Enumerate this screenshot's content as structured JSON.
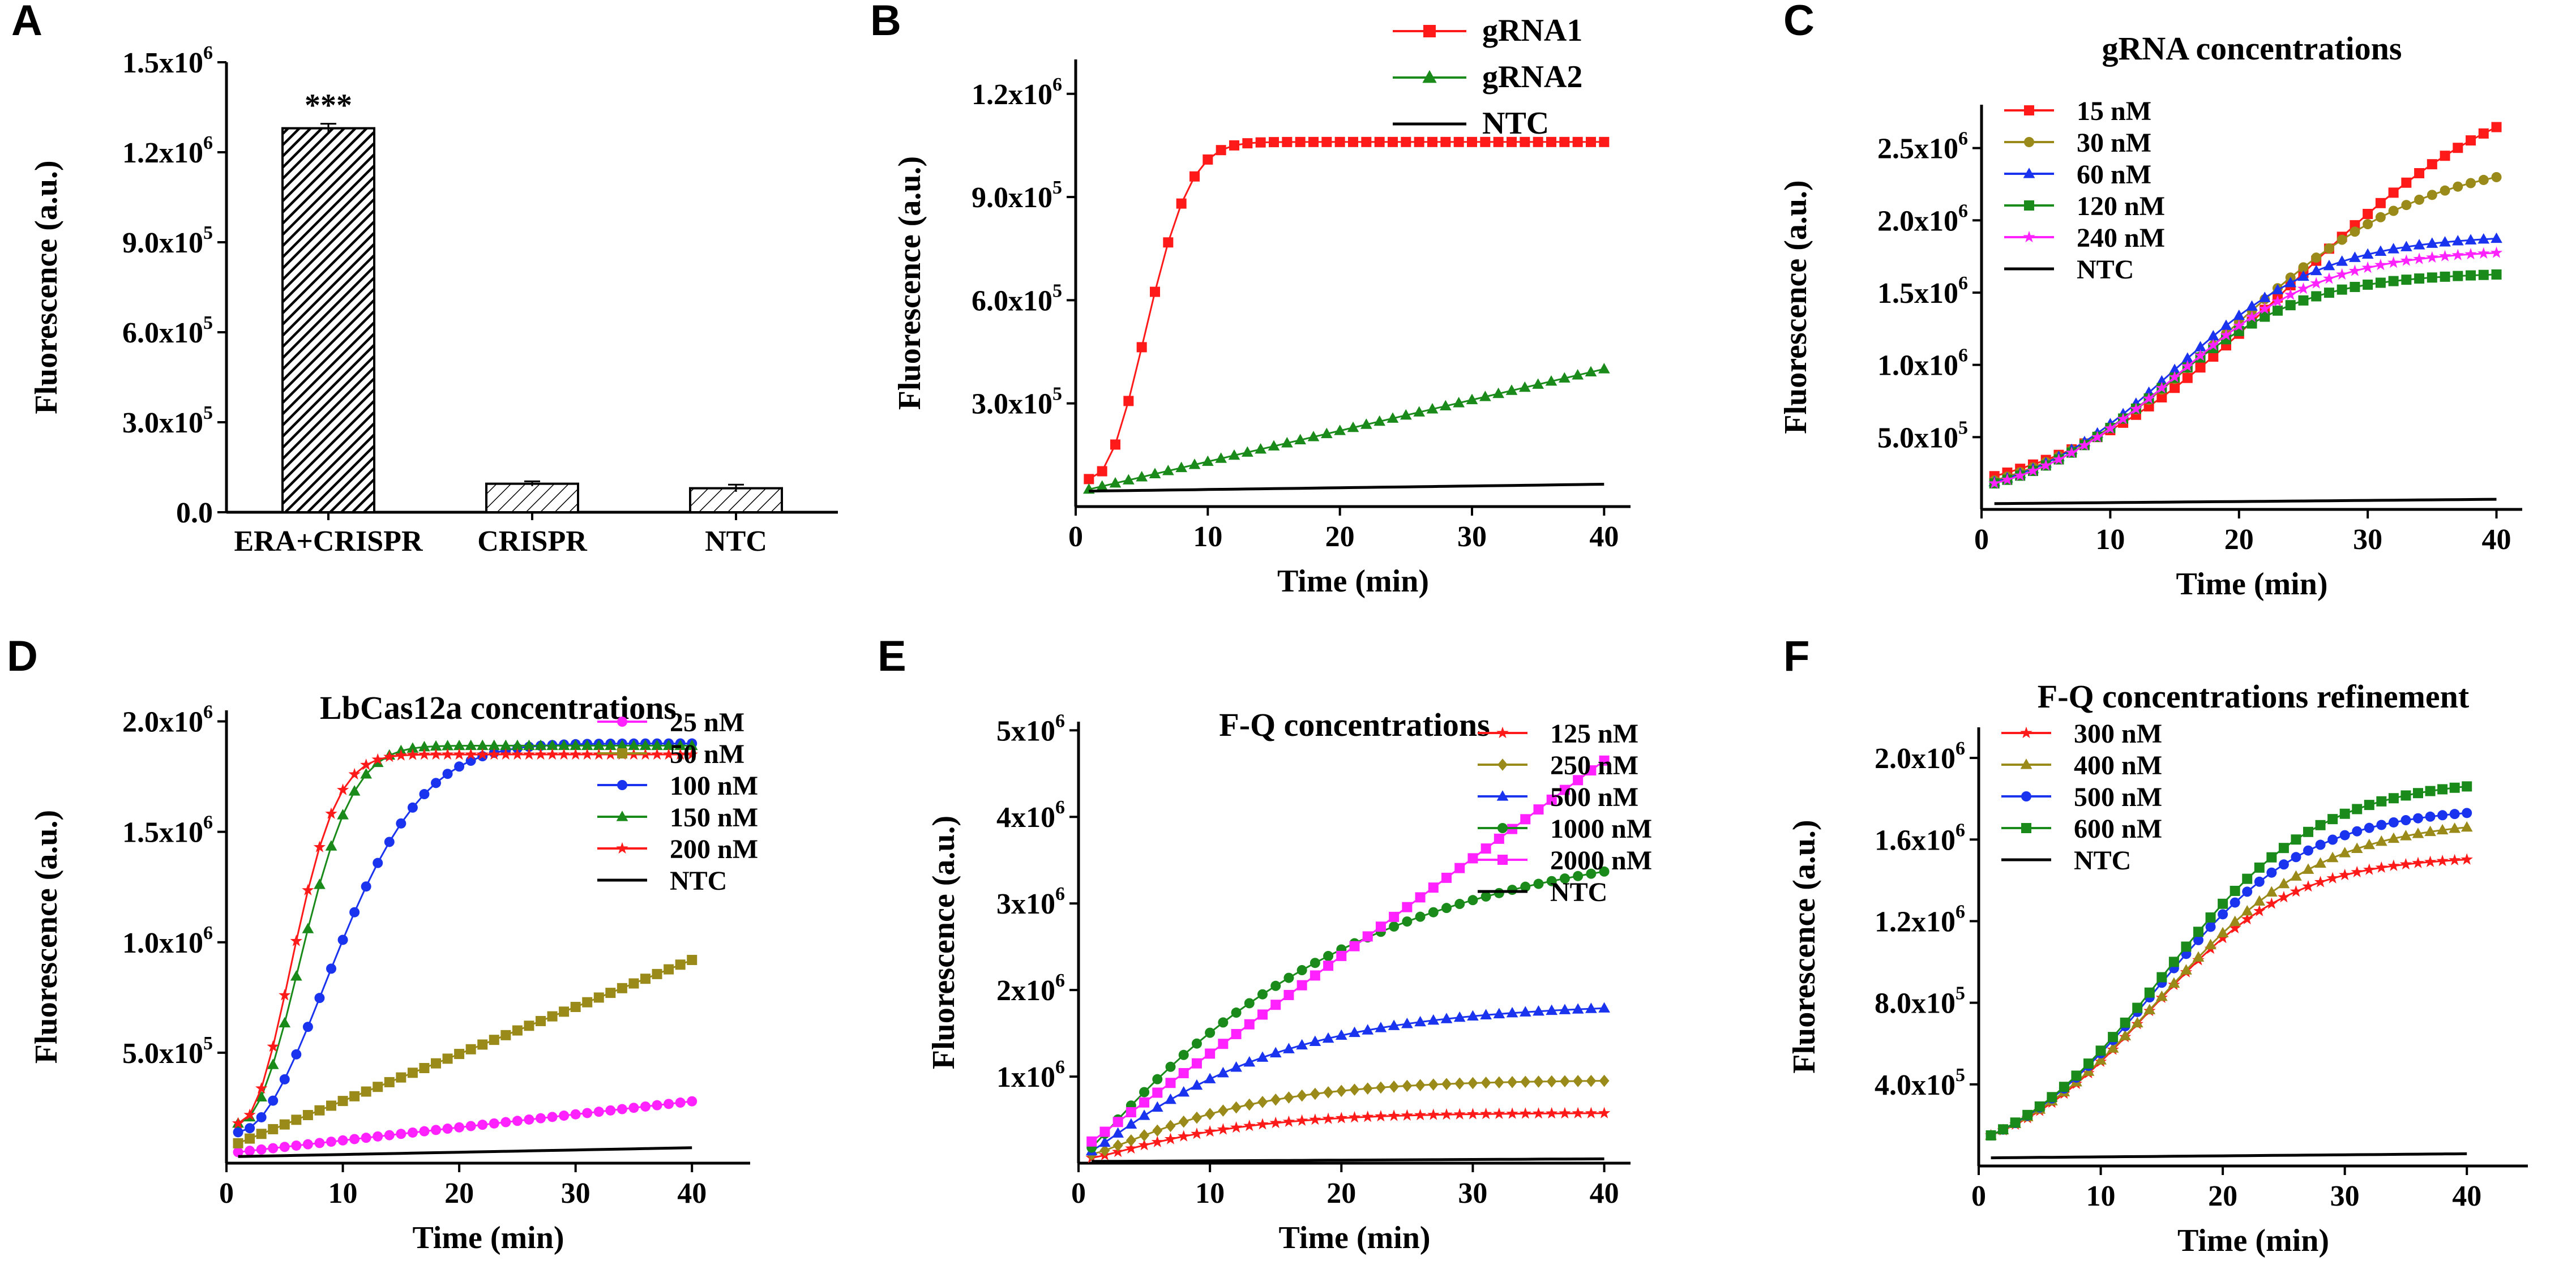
{
  "colors": {
    "red": "#ff1a1a",
    "green": "#1a8a1a",
    "olive": "#9a8a1a",
    "blue": "#1a33ee",
    "magenta": "#ff22ff",
    "black": "#000000"
  },
  "chart_data": [
    {
      "id": "A",
      "type": "bar",
      "panel_label": "A",
      "title": "",
      "xlabel": "",
      "ylabel": "Fluorescence (a.u.)",
      "ylim": [
        0,
        1500000
      ],
      "yticks": [
        0,
        300000,
        600000,
        900000,
        1200000,
        1500000
      ],
      "ytick_labels": [
        "0.0",
        "3.0x10^5",
        "6.0x10^5",
        "9.0x10^5",
        "1.2x10^6",
        "1.5x10^6"
      ],
      "categories": [
        "ERA+CRISPR",
        "CRISPR",
        "NTC"
      ],
      "values": [
        1280000,
        95000,
        80000
      ],
      "errors": [
        15000,
        8000,
        12000
      ],
      "annotations": [
        {
          "category": "ERA+CRISPR",
          "text": "***"
        }
      ]
    },
    {
      "id": "B",
      "type": "line",
      "panel_label": "B",
      "title": "",
      "xlabel": "Time (min)",
      "ylabel": "Fluorescence (a.u.)",
      "xlim": [
        0,
        42
      ],
      "ylim": [
        0,
        1300000
      ],
      "xticks": [
        0,
        10,
        20,
        30,
        40
      ],
      "yticks": [
        300000,
        600000,
        900000,
        1200000
      ],
      "ytick_labels": [
        "3.0x10^5",
        "6.0x10^5",
        "9.0x10^5",
        "1.2x10^6"
      ],
      "legend_style": "big",
      "legend_position": "top-right",
      "curve": {
        "x_start": 1,
        "x_end": 40
      },
      "series": [
        {
          "name": "gRNA1",
          "color": "red",
          "marker": "square",
          "model": "sat",
          "y0": 80000,
          "ymax": 1060000,
          "tau": 5.5,
          "shape": 2.2
        },
        {
          "name": "gRNA2",
          "color": "green",
          "marker": "triangle",
          "model": "lin",
          "y0": 50000,
          "y40": 400000
        },
        {
          "name": "NTC",
          "color": "black",
          "marker": "none",
          "model": "lin",
          "y0": 45000,
          "y40": 65000
        }
      ]
    },
    {
      "id": "C",
      "type": "line",
      "panel_label": "C",
      "title": "gRNA concentrations",
      "xlabel": "Time (min)",
      "ylabel": "Fluorescence (a.u.)",
      "xlim": [
        0,
        42
      ],
      "ylim": [
        0,
        2800000
      ],
      "xticks": [
        0,
        10,
        20,
        30,
        40
      ],
      "yticks": [
        500000,
        1000000,
        1500000,
        2000000,
        2500000
      ],
      "ytick_labels": [
        "5.0x10^5",
        "1.0x10^6",
        "1.5x10^6",
        "2.0x10^6",
        "2.5x10^6"
      ],
      "legend_style": "small",
      "legend_position": "top-left",
      "curve": {
        "x_start": 1,
        "x_end": 40
      },
      "series": [
        {
          "name": "15 nM",
          "color": "red",
          "marker": "square",
          "model": "sig",
          "y0": 230000,
          "ymax": 3100000,
          "x50": 24,
          "k": 0.11
        },
        {
          "name": "30 nM",
          "color": "olive",
          "marker": "circle",
          "model": "sig",
          "y0": 200000,
          "ymax": 2450000,
          "x50": 19,
          "k": 0.13
        },
        {
          "name": "60 nM",
          "color": "blue",
          "marker": "triangle",
          "model": "sig",
          "y0": 190000,
          "ymax": 1900000,
          "x50": 15,
          "k": 0.17
        },
        {
          "name": "120 nM",
          "color": "green",
          "marker": "square",
          "model": "sig",
          "y0": 180000,
          "ymax": 1640000,
          "x50": 14,
          "k": 0.18
        },
        {
          "name": "240 nM",
          "color": "magenta",
          "marker": "star",
          "model": "sig",
          "y0": 180000,
          "ymax": 1800000,
          "x50": 15,
          "k": 0.17
        },
        {
          "name": "NTC",
          "color": "black",
          "marker": "none",
          "model": "lin",
          "y0": 40000,
          "y40": 70000
        }
      ]
    },
    {
      "id": "D",
      "type": "line",
      "panel_label": "D",
      "title": "LbCas12a concentrations",
      "xlabel": "Time (min)",
      "ylabel": "Fluorescence (a.u.)",
      "xlim": [
        0,
        45
      ],
      "ylim": [
        0,
        2050000
      ],
      "xticks": [
        0,
        10,
        20,
        30,
        40
      ],
      "yticks": [
        500000,
        1000000,
        1500000,
        2000000
      ],
      "ytick_labels": [
        "5.0x10^5",
        "1.0x10^6",
        "1.5x10^6",
        "2.0x10^6"
      ],
      "legend_style": "small",
      "legend_position": "top-right",
      "curve": {
        "x_start": 1,
        "x_end": 40
      },
      "series": [
        {
          "name": "25 nM",
          "color": "magenta",
          "marker": "circle",
          "model": "lin",
          "y0": 50000,
          "y40": 280000
        },
        {
          "name": "50 nM",
          "color": "olive",
          "marker": "square",
          "model": "lin",
          "y0": 90000,
          "y40": 920000
        },
        {
          "name": "100 nM",
          "color": "blue",
          "marker": "circle",
          "model": "sat",
          "y0": 140000,
          "ymax": 1900000,
          "tau": 11,
          "shape": 1.9
        },
        {
          "name": "150 nM",
          "color": "green",
          "marker": "triangle",
          "model": "sat",
          "y0": 180000,
          "ymax": 1890000,
          "tau": 7,
          "shape": 2.1
        },
        {
          "name": "200 nM",
          "color": "red",
          "marker": "star",
          "model": "sat",
          "y0": 180000,
          "ymax": 1850000,
          "tau": 6,
          "shape": 2.1
        },
        {
          "name": "NTC",
          "color": "black",
          "marker": "none",
          "model": "lin",
          "y0": 30000,
          "y40": 70000
        }
      ]
    },
    {
      "id": "E",
      "type": "line",
      "panel_label": "E",
      "title": "F-Q concentrations",
      "xlabel": "Time (min)",
      "ylabel": "Fluorescence (a.u.)",
      "xlim": [
        0,
        42
      ],
      "ylim": [
        0,
        5100000
      ],
      "xticks": [
        0,
        10,
        20,
        30,
        40
      ],
      "yticks": [
        1000000,
        2000000,
        3000000,
        4000000,
        5000000
      ],
      "ytick_labels": [
        "1x10^6",
        "2x10^6",
        "3x10^6",
        "4x10^6",
        "5x10^6"
      ],
      "legend_style": "small",
      "legend_position": "top-right",
      "curve": {
        "x_start": 1,
        "x_end": 40
      },
      "series": [
        {
          "name": "125 nM",
          "color": "red",
          "marker": "star",
          "model": "sat",
          "y0": 60000,
          "ymax": 580000,
          "tau": 10,
          "shape": 1.2
        },
        {
          "name": "250 nM",
          "color": "olive",
          "marker": "diamond",
          "model": "sat",
          "y0": 100000,
          "ymax": 960000,
          "tau": 11,
          "shape": 1.2
        },
        {
          "name": "500 nM",
          "color": "blue",
          "marker": "triangle",
          "model": "sat",
          "y0": 140000,
          "ymax": 1850000,
          "tau": 13,
          "shape": 1.1
        },
        {
          "name": "1000 nM",
          "color": "green",
          "marker": "circle",
          "model": "sat",
          "y0": 180000,
          "ymax": 3800000,
          "tau": 19,
          "shape": 1.05
        },
        {
          "name": "2000 nM",
          "color": "magenta",
          "marker": "square",
          "model": "lin",
          "y0": 250000,
          "y40": 4650000
        },
        {
          "name": "NTC",
          "color": "black",
          "marker": "none",
          "model": "lin",
          "y0": 20000,
          "y40": 50000
        }
      ]
    },
    {
      "id": "F",
      "type": "line",
      "panel_label": "F",
      "title": "F-Q concentrations refinement",
      "xlabel": "Time (min)",
      "ylabel": "Fluorescence (a.u.)",
      "xlim": [
        0,
        45
      ],
      "ylim": [
        0,
        2150000
      ],
      "xticks": [
        0,
        10,
        20,
        30,
        40
      ],
      "yticks": [
        400000,
        800000,
        1200000,
        1600000,
        2000000
      ],
      "ytick_labels": [
        "4.0x10^5",
        "8.0x10^5",
        "1.2x10^6",
        "1.6x10^6",
        "2.0x10^6"
      ],
      "legend_style": "small",
      "legend_position": "top-left",
      "curve": {
        "x_start": 1,
        "x_end": 40
      },
      "series": [
        {
          "name": "300 nM",
          "color": "red",
          "marker": "star",
          "model": "sig",
          "y0": 150000,
          "ymax": 1520000,
          "x50": 14,
          "k": 0.17
        },
        {
          "name": "400 nM",
          "color": "olive",
          "marker": "triangle",
          "model": "sig",
          "y0": 150000,
          "ymax": 1700000,
          "x50": 15,
          "k": 0.15
        },
        {
          "name": "500 nM",
          "color": "blue",
          "marker": "circle",
          "model": "sig",
          "y0": 150000,
          "ymax": 1760000,
          "x50": 14.5,
          "k": 0.16
        },
        {
          "name": "600 nM",
          "color": "green",
          "marker": "square",
          "model": "sig",
          "y0": 150000,
          "ymax": 1900000,
          "x50": 15,
          "k": 0.155
        },
        {
          "name": "NTC",
          "color": "black",
          "marker": "none",
          "model": "lin",
          "y0": 40000,
          "y40": 60000
        }
      ]
    }
  ]
}
